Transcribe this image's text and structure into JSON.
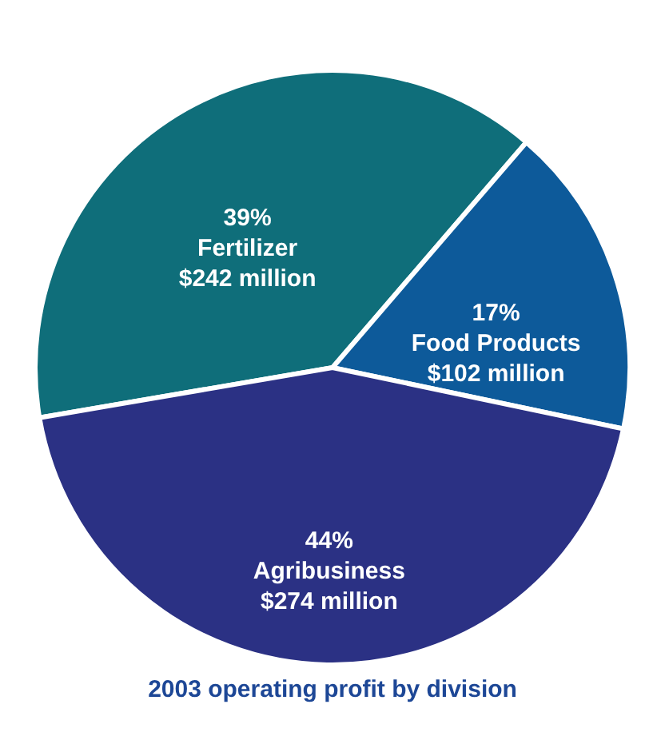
{
  "chart_data": {
    "type": "pie",
    "title": "2003 operating profit by division",
    "categories": [
      "Fertilizer",
      "Food Products",
      "Agribusiness"
    ],
    "values": [
      39,
      17,
      44
    ],
    "value_labels": [
      "39%",
      "17%",
      "44%"
    ],
    "annotations": [
      "$242 million",
      "$102 million",
      "$274 million"
    ],
    "colors": [
      "#0f6e7a",
      "#0d5a9a",
      "#2b3184"
    ]
  }
}
